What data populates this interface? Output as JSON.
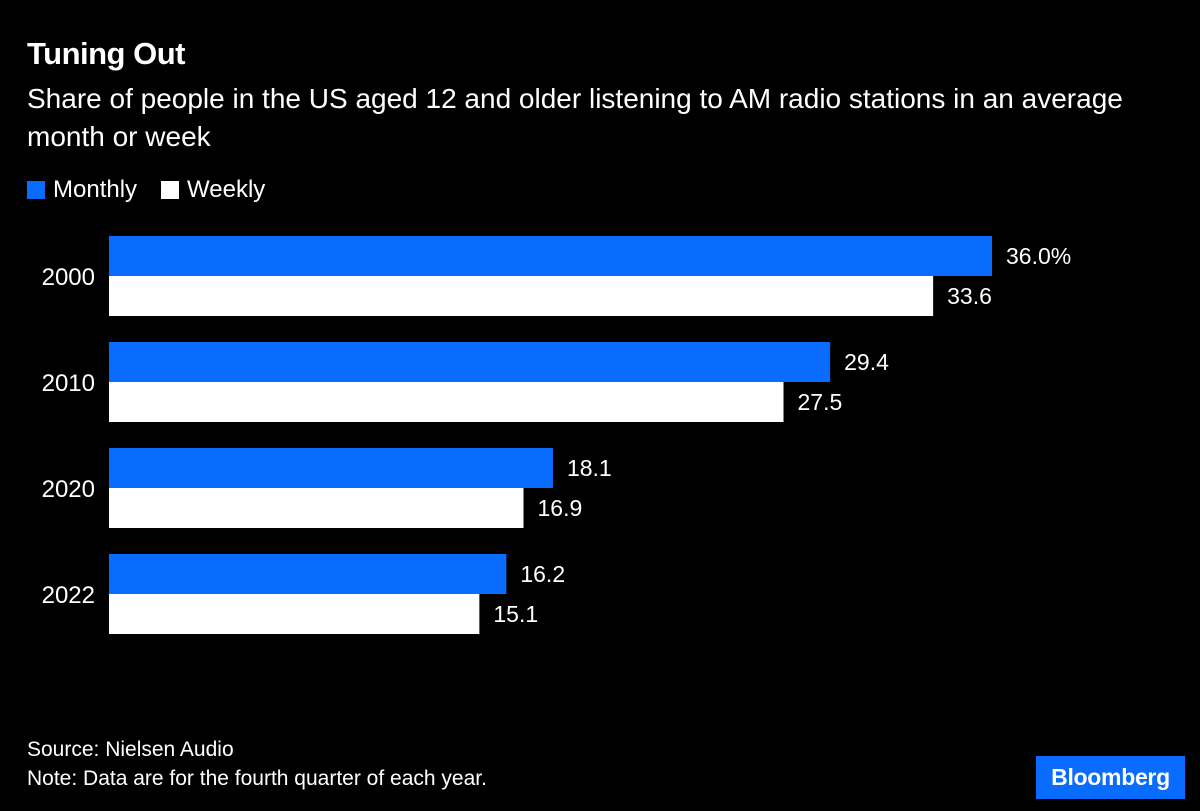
{
  "colors": {
    "background": "#000000",
    "monthly": "#0a6bff",
    "weekly": "#ffffff",
    "text": "#ffffff"
  },
  "chart_data": {
    "type": "bar",
    "orientation": "horizontal",
    "title": "Tuning Out",
    "subtitle": "Share of people in the US aged 12 and older listening to AM radio stations in an average month or week",
    "categories": [
      "2000",
      "2010",
      "2020",
      "2022"
    ],
    "series": [
      {
        "name": "Monthly",
        "values": [
          36.0,
          29.4,
          18.1,
          16.2
        ],
        "labels": [
          "36.0%",
          "29.4",
          "18.1",
          "16.2"
        ]
      },
      {
        "name": "Weekly",
        "values": [
          33.6,
          27.5,
          16.9,
          15.1
        ],
        "labels": [
          "33.6",
          "27.5",
          "16.9",
          "15.1"
        ]
      }
    ],
    "xlim": [
      0,
      36.0
    ],
    "grid": false,
    "legend": "top-left"
  },
  "footer": {
    "source": "Source: Nielsen Audio",
    "note": "Note: Data are for the fourth quarter of each year."
  },
  "brand": "Bloomberg"
}
